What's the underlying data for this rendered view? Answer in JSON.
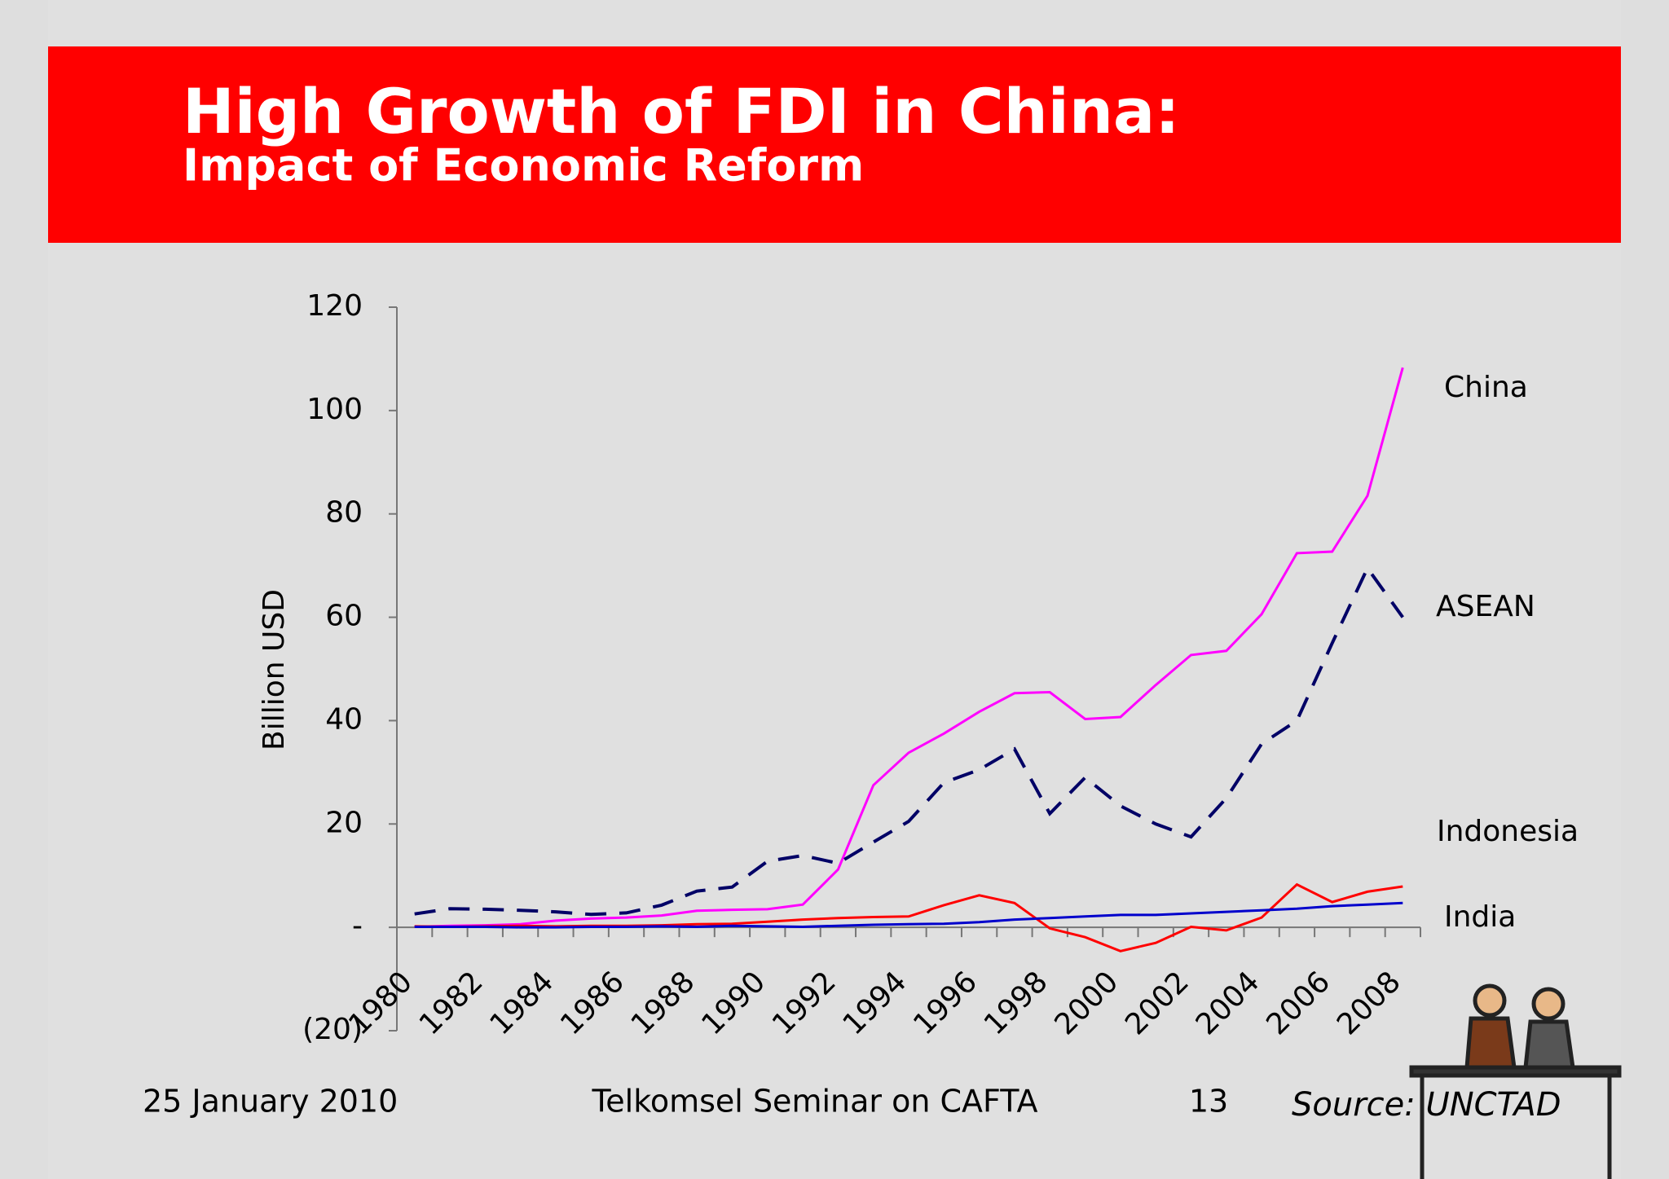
{
  "chart_data": {
    "type": "line",
    "title": "High Growth of FDI in China:",
    "subtitle": "Impact of Economic Reform",
    "y_label": "Billion USD",
    "categories": [
      "1980",
      null,
      "1982",
      null,
      "1984",
      null,
      "1986",
      null,
      "1988",
      null,
      "1990",
      null,
      "1992",
      null,
      "1994",
      null,
      "1996",
      null,
      "1998",
      null,
      "2000",
      null,
      "2002",
      null,
      "2004",
      null,
      "2006",
      null,
      "2008"
    ],
    "ylim": [
      -20,
      120
    ],
    "yticks": [
      {
        "value": -20,
        "label": "(20)"
      },
      {
        "value": 0,
        "label": "-"
      },
      20,
      40,
      60,
      80,
      100,
      120
    ],
    "series": [
      {
        "name": "China",
        "color": "#ff00ff",
        "dashed": false,
        "values": [
          0.1,
          0.3,
          0.4,
          0.6,
          1.3,
          1.7,
          1.9,
          2.3,
          3.2,
          3.4,
          3.5,
          4.4,
          11.2,
          27.5,
          33.8,
          37.5,
          41.7,
          45.3,
          45.5,
          40.3,
          40.7,
          46.9,
          52.7,
          53.5,
          60.6,
          72.4,
          72.7,
          83.5,
          108.3
        ]
      },
      {
        "name": "ASEAN",
        "color": "#000066",
        "dashed": true,
        "values": [
          2.6,
          3.6,
          3.5,
          3.3,
          3.0,
          2.5,
          2.8,
          4.3,
          7.0,
          7.8,
          12.8,
          13.9,
          12.4,
          16.5,
          20.5,
          28.0,
          30.5,
          34.5,
          22.0,
          29.0,
          23.5,
          20.0,
          17.5,
          25.0,
          35.5,
          40.0,
          55.0,
          69.5,
          60.0
        ]
      },
      {
        "name": "Indonesia",
        "color": "#ff0000",
        "dashed": false,
        "values": [
          0.2,
          0.1,
          0.2,
          0.3,
          0.2,
          0.3,
          0.3,
          0.4,
          0.6,
          0.7,
          1.1,
          1.5,
          1.8,
          2.0,
          2.1,
          4.3,
          6.2,
          4.7,
          -0.2,
          -1.9,
          -4.6,
          -3.0,
          0.1,
          -0.6,
          1.9,
          8.3,
          4.9,
          6.9,
          7.9
        ]
      },
      {
        "name": "India",
        "color": "#0000cc",
        "dashed": false,
        "values": [
          0.1,
          0.1,
          0.1,
          0.0,
          0.0,
          0.1,
          0.1,
          0.2,
          0.1,
          0.3,
          0.2,
          0.1,
          0.3,
          0.5,
          0.6,
          0.7,
          1.0,
          1.5,
          1.8,
          2.1,
          2.4,
          2.4,
          2.7,
          3.0,
          3.3,
          3.6,
          4.1,
          4.4,
          4.7
        ]
      }
    ],
    "footer": {
      "date": "25 January 2010",
      "event": "Telkomsel Seminar on CAFTA",
      "page": "13",
      "source": "Source: UNCTAD"
    }
  }
}
